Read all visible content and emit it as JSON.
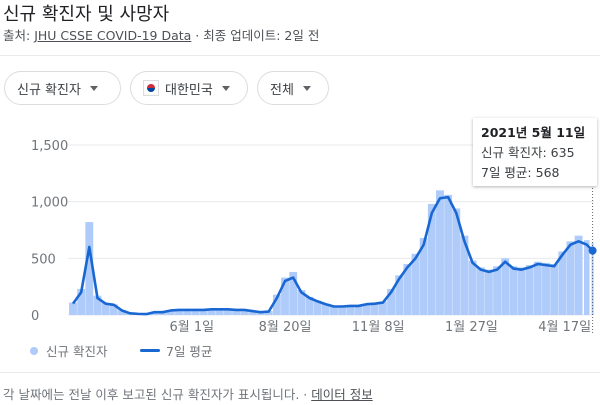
{
  "header": {
    "title": "신규 확진자 및 사망자",
    "source_prefix": "출처: ",
    "source_link": "JHU CSSE COVID-19 Data",
    "updated": " · 최종 업데이트: 2일 전"
  },
  "filters": [
    {
      "label": "신규 확진자",
      "icon": "caret-down-icon"
    },
    {
      "label": "대한민국",
      "icon": "south-korea-flag-icon"
    },
    {
      "label": "전체",
      "icon": "caret-down-icon"
    }
  ],
  "tooltip": {
    "date": "2021년 5월 11일",
    "new_cases": "신규 확진자: 635",
    "avg": "7일 평균: 568"
  },
  "footer": {
    "note": "각 날짜에는 전날 이후 보고된 신규 확진자가 표시됩니다.",
    "sep": " · ",
    "link": "데이터 정보"
  },
  "colors": {
    "bar": "#aecbfa",
    "line": "#1967d2",
    "grid": "#e8eaed"
  },
  "chart_data": {
    "type": "bar+line",
    "x_start": "2020-02-20",
    "x_step_days": 7,
    "x_end": "2021-05-11",
    "ylim": [
      0,
      1500
    ],
    "yticks": [
      0,
      500,
      1000,
      1500
    ],
    "ytick_labels": [
      "0",
      "500",
      "1,000",
      "1,500"
    ],
    "xticks": [
      "2020-06-01",
      "2020-08-20",
      "2020-11-08",
      "2021-01-27",
      "2021-04-17"
    ],
    "xtick_labels": [
      "6월 1일",
      "8월 20일",
      "11월 8일",
      "1월 27일",
      "4월 17일"
    ],
    "grid": true,
    "legend_position": "bottom-left",
    "series": [
      {
        "name": "신규 확진자",
        "kind": "bar",
        "values": [
          110,
          230,
          820,
          170,
          105,
          95,
          45,
          18,
          12,
          10,
          30,
          28,
          45,
          50,
          48,
          50,
          48,
          55,
          55,
          55,
          50,
          48,
          38,
          28,
          35,
          180,
          330,
          380,
          220,
          160,
          125,
          100,
          80,
          78,
          85,
          85,
          100,
          110,
          120,
          230,
          350,
          450,
          540,
          680,
          980,
          1100,
          1060,
          940,
          700,
          480,
          420,
          400,
          430,
          500,
          430,
          420,
          440,
          470,
          460,
          450,
          560,
          650,
          700,
          660,
          635
        ]
      },
      {
        "name": "7일 평균",
        "kind": "line",
        "values": [
          100,
          200,
          600,
          150,
          100,
          90,
          40,
          15,
          10,
          8,
          25,
          25,
          40,
          45,
          45,
          45,
          45,
          50,
          50,
          50,
          45,
          45,
          35,
          25,
          30,
          150,
          300,
          330,
          200,
          150,
          120,
          95,
          75,
          75,
          80,
          80,
          95,
          100,
          110,
          200,
          320,
          420,
          500,
          620,
          900,
          1030,
          1040,
          900,
          650,
          460,
          400,
          380,
          400,
          470,
          410,
          400,
          420,
          450,
          440,
          430,
          530,
          620,
          650,
          620,
          568
        ]
      }
    ],
    "last_point_date": "2021-05-11"
  }
}
